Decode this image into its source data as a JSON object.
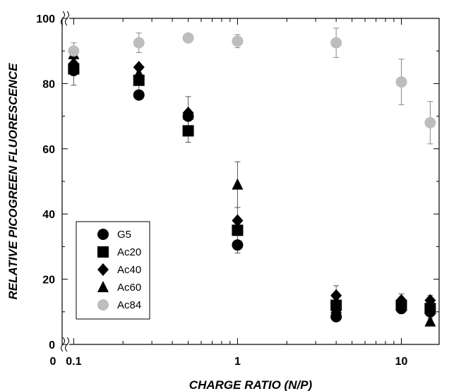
{
  "chart_data": {
    "type": "scatter",
    "title": "",
    "xlabel": "CHARGE RATIO (N/P)",
    "ylabel": "RELATIVE PICOGREEN FLUORESCENCE",
    "x_scale": "log",
    "xlim": [
      0.085,
      17
    ],
    "ylim": [
      0,
      100
    ],
    "x_tick_labels": [
      {
        "value": 0.1,
        "label": "0.1"
      },
      {
        "value": 1,
        "label": "1"
      },
      {
        "value": 10,
        "label": "10"
      }
    ],
    "x_zero_label": "0",
    "y_ticks": [
      0,
      20,
      40,
      60,
      80,
      100
    ],
    "axis_breaks": true,
    "grid": false,
    "legend_position": "bottom-left",
    "series": [
      {
        "name": "G5",
        "marker": "circle",
        "color": "#000000",
        "points": [
          {
            "x": 0.1,
            "y": 84,
            "err": 0
          },
          {
            "x": 0.25,
            "y": 76.5,
            "err": 0
          },
          {
            "x": 0.5,
            "y": 70,
            "err": 0
          },
          {
            "x": 1,
            "y": 30.5,
            "err": 0
          },
          {
            "x": 4,
            "y": 8.5,
            "err": 0
          },
          {
            "x": 10,
            "y": 11,
            "err": 0
          },
          {
            "x": 15,
            "y": 10,
            "err": 0
          }
        ]
      },
      {
        "name": "Ac20",
        "marker": "square",
        "color": "#000000",
        "points": [
          {
            "x": 0.1,
            "y": 84.5,
            "err": 5
          },
          {
            "x": 0.25,
            "y": 81,
            "err": 4
          },
          {
            "x": 0.5,
            "y": 65.5,
            "err": 3.5
          },
          {
            "x": 1,
            "y": 35,
            "err": 7
          },
          {
            "x": 4,
            "y": 12,
            "err": 4
          },
          {
            "x": 10,
            "y": 12,
            "err": 2.5
          },
          {
            "x": 15,
            "y": 11,
            "err": 3
          }
        ]
      },
      {
        "name": "Ac40",
        "marker": "diamond",
        "color": "#000000",
        "points": [
          {
            "x": 0.1,
            "y": 86,
            "err": 0
          },
          {
            "x": 0.25,
            "y": 85,
            "err": 0
          },
          {
            "x": 0.5,
            "y": 71,
            "err": 5
          },
          {
            "x": 1,
            "y": 38,
            "err": 0
          },
          {
            "x": 4,
            "y": 15,
            "err": 3
          },
          {
            "x": 10,
            "y": 13.5,
            "err": 2
          },
          {
            "x": 15,
            "y": 13.5,
            "err": 1.5
          }
        ]
      },
      {
        "name": "Ac60",
        "marker": "triangle",
        "color": "#000000",
        "points": [
          {
            "x": 0.1,
            "y": 89,
            "err": 0
          },
          {
            "x": 0.25,
            "y": 83,
            "err": 0
          },
          {
            "x": 0.5,
            "y": 70.5,
            "err": 0
          },
          {
            "x": 1,
            "y": 49,
            "err": 7
          },
          {
            "x": 4,
            "y": 11,
            "err": 0
          },
          {
            "x": 10,
            "y": 12.5,
            "err": 0
          },
          {
            "x": 15,
            "y": 7,
            "err": 0
          }
        ]
      },
      {
        "name": "Ac84",
        "marker": "circle",
        "color": "#bdbdbd",
        "points": [
          {
            "x": 0.1,
            "y": 90,
            "err": 2.5
          },
          {
            "x": 0.25,
            "y": 92.5,
            "err": 3
          },
          {
            "x": 0.5,
            "y": 94,
            "err": 0
          },
          {
            "x": 1,
            "y": 93,
            "err": 2
          },
          {
            "x": 4,
            "y": 92.5,
            "err": 4.5
          },
          {
            "x": 10,
            "y": 80.5,
            "err": 7
          },
          {
            "x": 15,
            "y": 68,
            "err": 6.5
          }
        ]
      }
    ]
  }
}
